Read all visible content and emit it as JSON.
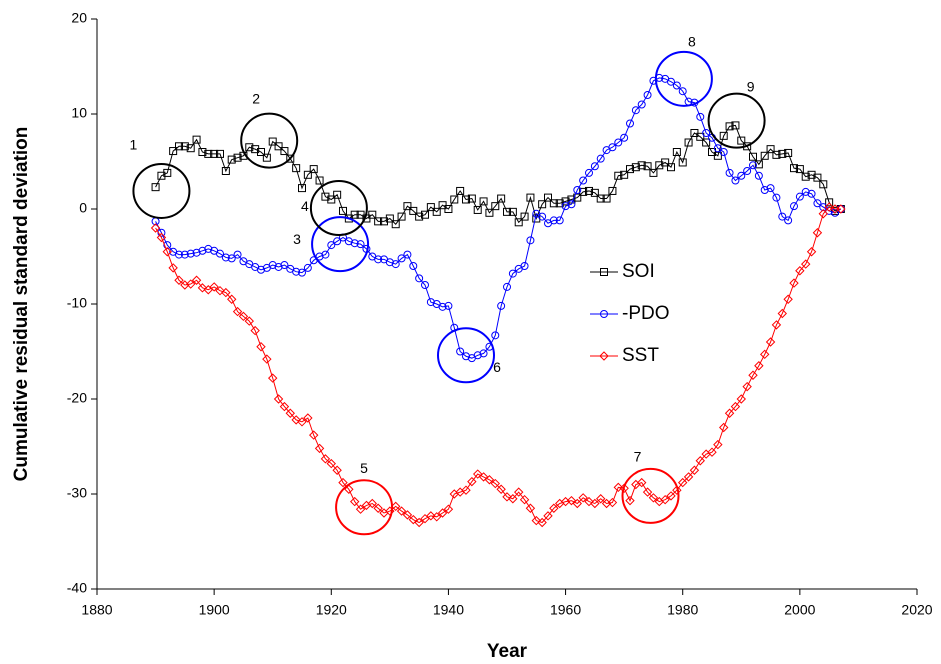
{
  "chart_data": {
    "type": "line",
    "x_label": "Year",
    "y_label": "Cumulative residual standard deviation",
    "xlim": [
      1880,
      2020
    ],
    "xticks": [
      1880,
      1900,
      1920,
      1940,
      1960,
      1980,
      2000,
      2020
    ],
    "ylim": [
      -40,
      20
    ],
    "yticks": [
      -40,
      -30,
      -20,
      -10,
      0,
      10,
      20
    ],
    "grid": false,
    "legend": "right",
    "x": [
      1890,
      1891,
      1892,
      1893,
      1894,
      1895,
      1896,
      1897,
      1898,
      1899,
      1900,
      1901,
      1902,
      1903,
      1904,
      1905,
      1906,
      1907,
      1908,
      1909,
      1910,
      1911,
      1912,
      1913,
      1914,
      1915,
      1916,
      1917,
      1918,
      1919,
      1920,
      1921,
      1922,
      1923,
      1924,
      1925,
      1926,
      1927,
      1928,
      1929,
      1930,
      1931,
      1932,
      1933,
      1934,
      1935,
      1936,
      1937,
      1938,
      1939,
      1940,
      1941,
      1942,
      1943,
      1944,
      1945,
      1946,
      1947,
      1948,
      1949,
      1950,
      1951,
      1952,
      1953,
      1954,
      1955,
      1956,
      1957,
      1958,
      1959,
      1960,
      1961,
      1962,
      1963,
      1964,
      1965,
      1966,
      1967,
      1968,
      1969,
      1970,
      1971,
      1972,
      1973,
      1974,
      1975,
      1976,
      1977,
      1978,
      1979,
      1980,
      1981,
      1982,
      1983,
      1984,
      1985,
      1986,
      1987,
      1988,
      1989,
      1990,
      1991,
      1992,
      1993,
      1994,
      1995,
      1996,
      1997,
      1998,
      1999,
      2000,
      2001,
      2002,
      2003,
      2004,
      2005,
      2006,
      2007
    ],
    "series": [
      {
        "name": "SOI",
        "color": "#000000",
        "marker": "square",
        "values": [
          2.3,
          3.5,
          3.8,
          6.1,
          6.6,
          6.6,
          6.4,
          7.3,
          6.0,
          5.8,
          5.8,
          5.8,
          4.0,
          5.2,
          5.4,
          5.6,
          6.5,
          6.3,
          6.0,
          5.4,
          7.1,
          6.6,
          6.1,
          5.3,
          4.3,
          2.2,
          3.6,
          4.2,
          3.0,
          1.3,
          1.0,
          1.5,
          -0.2,
          -1.0,
          -0.6,
          -0.6,
          -1.0,
          -0.6,
          -1.3,
          -1.3,
          -1.0,
          -1.6,
          -0.8,
          0.3,
          -0.2,
          -0.8,
          -0.6,
          0.2,
          -0.3,
          0.4,
          0.0,
          1.0,
          1.9,
          1.0,
          1.1,
          -0.1,
          0.8,
          -0.4,
          0.3,
          1.1,
          -0.3,
          -0.3,
          -1.4,
          -0.8,
          1.2,
          -1.0,
          0.5,
          1.2,
          0.6,
          0.6,
          0.8,
          1.0,
          1.2,
          1.8,
          1.9,
          1.7,
          1.1,
          1.1,
          1.9,
          3.5,
          3.6,
          4.2,
          4.4,
          4.6,
          4.5,
          3.8,
          4.6,
          4.9,
          4.4,
          6.0,
          4.9,
          7.0,
          8.0,
          7.6,
          7.0,
          6.0,
          5.6,
          7.7,
          8.7,
          8.8,
          7.2,
          6.6,
          5.5,
          4.7,
          5.6,
          6.3,
          5.7,
          5.8,
          5.9,
          4.3,
          4.2,
          3.4,
          3.6,
          3.3,
          2.6,
          0.7,
          -0.2,
          0.0
        ]
      },
      {
        "name": "-PDO",
        "color": "#0000ff",
        "marker": "circle",
        "values": [
          -1.3,
          -2.5,
          -3.8,
          -4.5,
          -4.8,
          -4.8,
          -4.7,
          -4.6,
          -4.4,
          -4.2,
          -4.4,
          -4.7,
          -5.1,
          -5.2,
          -4.8,
          -5.5,
          -5.8,
          -6.1,
          -6.4,
          -6.2,
          -5.9,
          -6.1,
          -5.9,
          -6.3,
          -6.6,
          -6.7,
          -6.2,
          -5.4,
          -5.0,
          -4.8,
          -3.8,
          -3.4,
          -3.0,
          -3.4,
          -3.6,
          -3.7,
          -4.2,
          -5.0,
          -5.3,
          -5.3,
          -5.6,
          -5.8,
          -5.2,
          -4.8,
          -6.0,
          -7.3,
          -8.0,
          -9.8,
          -10.0,
          -10.3,
          -10.2,
          -12.5,
          -15.0,
          -15.5,
          -15.7,
          -15.4,
          -15.2,
          -14.5,
          -13.3,
          -10.2,
          -8.2,
          -6.8,
          -6.3,
          -6.0,
          -3.3,
          -0.5,
          -0.8,
          -1.5,
          -1.2,
          -1.2,
          0.3,
          0.5,
          2.0,
          3.0,
          3.8,
          4.5,
          5.3,
          6.2,
          6.5,
          7.0,
          7.5,
          9.0,
          10.4,
          11.0,
          12.0,
          13.5,
          13.8,
          13.7,
          13.4,
          13.0,
          12.4,
          11.3,
          11.2,
          9.7,
          8.0,
          7.5,
          6.4,
          6.0,
          3.8,
          3.0,
          3.5,
          4.0,
          4.6,
          3.5,
          2.0,
          2.2,
          1.2,
          -0.8,
          -1.2,
          0.3,
          1.3,
          1.8,
          1.6,
          0.6,
          0.2,
          -0.2,
          -0.4,
          0.0
        ]
      },
      {
        "name": "SST",
        "color": "#ff0000",
        "marker": "diamond",
        "values": [
          -2.0,
          -3.0,
          -4.5,
          -6.2,
          -7.5,
          -8.0,
          -7.9,
          -7.5,
          -8.3,
          -8.5,
          -8.2,
          -8.6,
          -8.8,
          -9.5,
          -10.8,
          -11.3,
          -11.8,
          -12.8,
          -14.5,
          -15.8,
          -17.8,
          -20.0,
          -20.8,
          -21.5,
          -22.2,
          -22.4,
          -22.0,
          -23.8,
          -25.2,
          -26.3,
          -26.8,
          -27.5,
          -28.8,
          -29.5,
          -30.8,
          -31.6,
          -31.2,
          -31.0,
          -31.5,
          -32.0,
          -31.8,
          -31.3,
          -31.8,
          -32.2,
          -32.7,
          -33.0,
          -32.6,
          -32.3,
          -32.4,
          -32.0,
          -31.6,
          -30.0,
          -29.8,
          -29.6,
          -28.7,
          -27.9,
          -28.2,
          -28.5,
          -28.9,
          -29.5,
          -30.3,
          -30.5,
          -29.8,
          -30.6,
          -31.5,
          -32.8,
          -33.0,
          -32.3,
          -31.5,
          -31.0,
          -30.8,
          -30.7,
          -31.0,
          -30.4,
          -30.8,
          -31.0,
          -30.5,
          -31.0,
          -30.9,
          -29.3,
          -29.4,
          -30.7,
          -29.0,
          -28.8,
          -29.8,
          -30.4,
          -30.8,
          -30.6,
          -30.2,
          -29.6,
          -28.8,
          -28.2,
          -27.5,
          -26.5,
          -25.8,
          -25.6,
          -24.8,
          -23.0,
          -21.5,
          -20.8,
          -20.0,
          -18.7,
          -17.5,
          -16.5,
          -15.3,
          -14.0,
          -12.2,
          -11.0,
          -9.5,
          -7.8,
          -6.5,
          -5.8,
          -4.5,
          -2.5,
          -0.5,
          0.2,
          0.0,
          0.0
        ]
      }
    ],
    "annotations": [
      {
        "text": "1",
        "x": 1891,
        "y": 1.9,
        "color": "#000000"
      },
      {
        "text": "2",
        "x": 1909.4,
        "y": 7.2,
        "color": "#000000"
      },
      {
        "text": "3",
        "x": 1921.5,
        "y": -3.7,
        "color": "#0000ff"
      },
      {
        "text": "4",
        "x": 1921.3,
        "y": 0.1,
        "color": "#000000"
      },
      {
        "text": "5",
        "x": 1925.6,
        "y": -31.4,
        "color": "#ff0000"
      },
      {
        "text": "6",
        "x": 1943,
        "y": -15.4,
        "color": "#0000ff"
      },
      {
        "text": "7",
        "x": 1974.5,
        "y": -30.2,
        "color": "#ff0000"
      },
      {
        "text": "8",
        "x": 1980.2,
        "y": 13.7,
        "color": "#0000ff"
      },
      {
        "text": "9",
        "x": 1989.2,
        "y": 9.3,
        "color": "#000000"
      }
    ]
  }
}
